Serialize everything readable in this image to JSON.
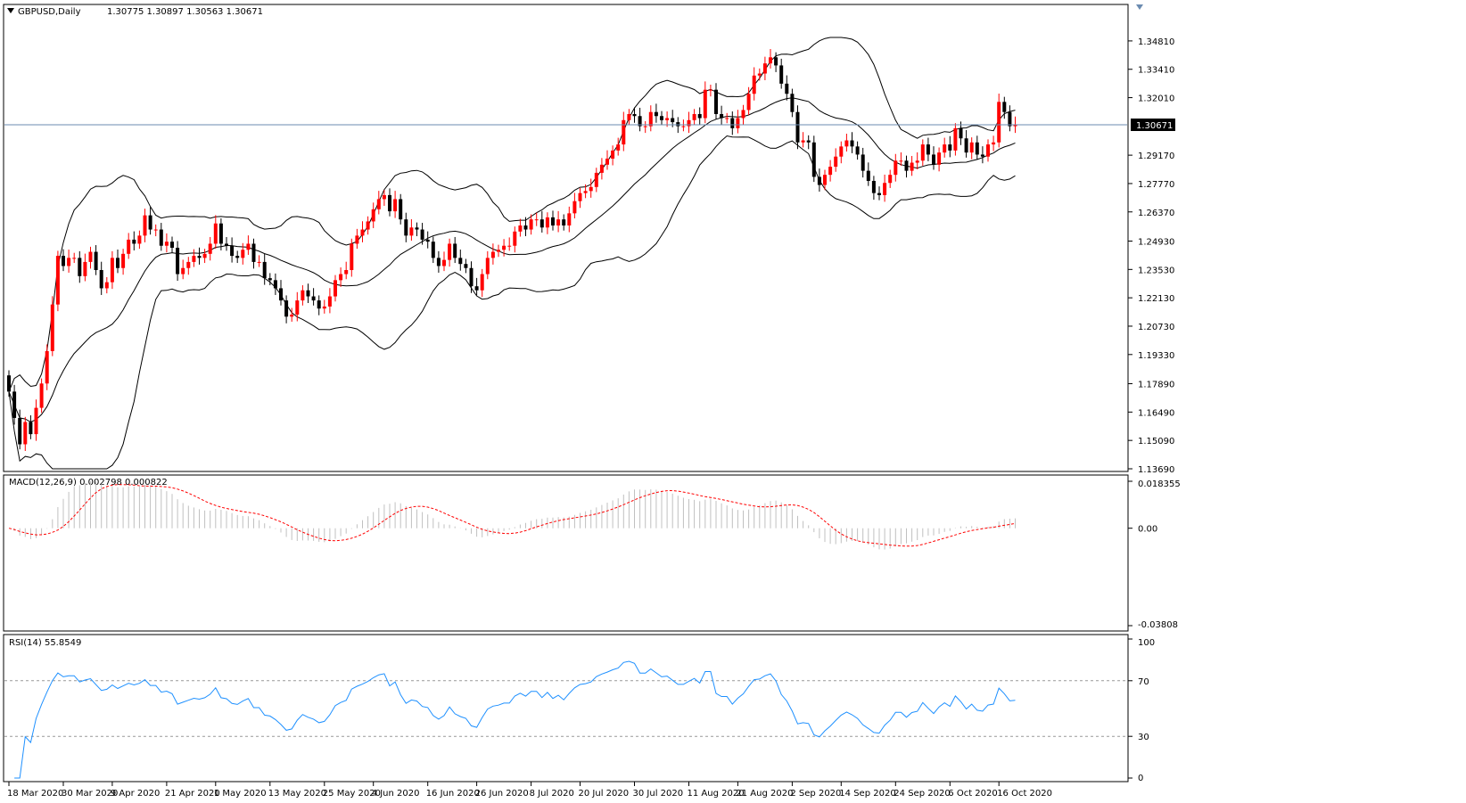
{
  "chart_data": [
    {
      "type": "candlestick",
      "symbol_label": "GBPUSD,Daily",
      "ohlc_label": "1.30775 1.30897 1.30563 1.30671",
      "current_price_label": "1.30671",
      "current_price": 1.30671,
      "ylim": [
        1.1369,
        1.3551
      ],
      "y_ticks": [
        "1.34810",
        "1.33410",
        "1.32010",
        "1.30671",
        "1.29170",
        "1.27770",
        "1.26370",
        "1.24930",
        "1.23530",
        "1.22130",
        "1.20730",
        "1.19330",
        "1.17890",
        "1.16490",
        "1.15090",
        "1.13690"
      ],
      "x_labels": [
        "18 Mar 2020",
        "30 Mar 2020",
        "9 Apr 2020",
        "21 Apr 2020",
        "1 May 2020",
        "13 May 2020",
        "25 May 2020",
        "4 Jun 2020",
        "16 Jun 2020",
        "26 Jun 2020",
        "8 Jul 2020",
        "20 Jul 2020",
        "30 Jul 2020",
        "11 Aug 2020",
        "21 Aug 2020",
        "2 Sep 2020",
        "14 Sep 2020",
        "24 Sep 2020",
        "6 Oct 2020",
        "16 Oct 2020"
      ],
      "candle_closes": [
        1.175,
        1.162,
        1.149,
        1.16,
        1.154,
        1.167,
        1.179,
        1.195,
        1.218,
        1.242,
        1.237,
        1.241,
        1.241,
        1.232,
        1.239,
        1.244,
        1.235,
        1.226,
        1.229,
        1.241,
        1.236,
        1.243,
        1.25,
        1.248,
        1.252,
        1.262,
        1.255,
        1.255,
        1.247,
        1.249,
        1.246,
        1.233,
        1.236,
        1.239,
        1.242,
        1.241,
        1.243,
        1.248,
        1.258,
        1.248,
        1.247,
        1.242,
        1.241,
        1.245,
        1.248,
        1.239,
        1.239,
        1.231,
        1.23,
        1.226,
        1.22,
        1.212,
        1.213,
        1.22,
        1.225,
        1.222,
        1.22,
        1.216,
        1.217,
        1.222,
        1.23,
        1.233,
        1.235,
        1.248,
        1.252,
        1.255,
        1.259,
        1.265,
        1.27,
        1.272,
        1.264,
        1.27,
        1.26,
        1.252,
        1.256,
        1.255,
        1.25,
        1.249,
        1.241,
        1.237,
        1.24,
        1.248,
        1.241,
        1.238,
        1.236,
        1.227,
        1.225,
        1.233,
        1.241,
        1.244,
        1.245,
        1.247,
        1.247,
        1.254,
        1.257,
        1.255,
        1.26,
        1.26,
        1.256,
        1.261,
        1.257,
        1.26,
        1.257,
        1.263,
        1.269,
        1.273,
        1.274,
        1.276,
        1.283,
        1.287,
        1.29,
        1.294,
        1.297,
        1.309,
        1.312,
        1.311,
        1.306,
        1.306,
        1.313,
        1.311,
        1.309,
        1.31,
        1.308,
        1.306,
        1.306,
        1.309,
        1.312,
        1.31,
        1.324,
        1.324,
        1.312,
        1.31,
        1.31,
        1.305,
        1.31,
        1.314,
        1.322,
        1.331,
        1.332,
        1.337,
        1.34,
        1.336,
        1.327,
        1.322,
        1.313,
        1.298,
        1.299,
        1.298,
        1.281,
        1.277,
        1.282,
        1.286,
        1.291,
        1.296,
        1.299,
        1.296,
        1.292,
        1.284,
        1.279,
        1.273,
        1.272,
        1.278,
        1.282,
        1.289,
        1.289,
        1.284,
        1.288,
        1.289,
        1.297,
        1.292,
        1.287,
        1.293,
        1.297,
        1.294,
        1.305,
        1.3,
        1.293,
        1.298,
        1.292,
        1.291,
        1.297,
        1.298,
        1.318,
        1.313,
        1.306,
        1.3067
      ],
      "candle_opens_delta_hint": "each candle opens at previous close",
      "bollinger": {
        "period": 20,
        "deviation": 2
      },
      "macd_label": "MACD(12,26,9) 0.002798 0.000822",
      "macd_ylim": [
        -0.03808,
        0.018355
      ],
      "macd_ticks": [
        "0.018355",
        "0.00",
        "-0.03808"
      ],
      "rsi_label": "RSI(14) 55.8549",
      "rsi_ylim": [
        0,
        100
      ],
      "rsi_ticks": [
        "100",
        "70",
        "30",
        "0"
      ],
      "rsi_levels": [
        30,
        70
      ]
    }
  ],
  "colors": {
    "bull": "#ff0000",
    "bear": "#000000",
    "grid_level": "#999999",
    "price_line": "#6b8bb0",
    "rsi": "#1e90ff",
    "macd_signal": "#ff0000",
    "macd_hist": "#c0c0c0",
    "price_box_bg": "#000000",
    "price_box_fg": "#ffffff"
  },
  "icons": {
    "collapse": "triangle-down-icon"
  }
}
